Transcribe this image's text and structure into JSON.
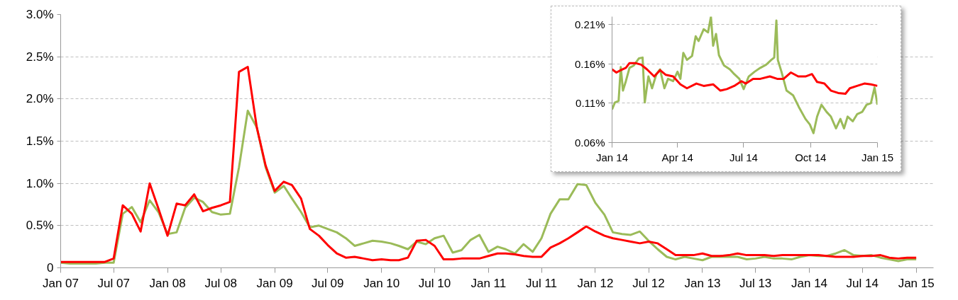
{
  "chart_data": [
    {
      "type": "line",
      "x": [
        "2007-01",
        "2007-02",
        "2007-03",
        "2007-04",
        "2007-05",
        "2007-06",
        "2007-07",
        "2007-08",
        "2007-09",
        "2007-10",
        "2007-11",
        "2007-12",
        "2008-01",
        "2008-02",
        "2008-03",
        "2008-04",
        "2008-05",
        "2008-06",
        "2008-07",
        "2008-08",
        "2008-09",
        "2008-10",
        "2008-11",
        "2008-12",
        "2009-01",
        "2009-02",
        "2009-03",
        "2009-04",
        "2009-05",
        "2009-06",
        "2009-07",
        "2009-08",
        "2009-09",
        "2009-10",
        "2009-11",
        "2009-12",
        "2010-01",
        "2010-02",
        "2010-03",
        "2010-04",
        "2010-05",
        "2010-06",
        "2010-07",
        "2010-08",
        "2010-09",
        "2010-10",
        "2010-11",
        "2010-12",
        "2011-01",
        "2011-02",
        "2011-03",
        "2011-04",
        "2011-05",
        "2011-06",
        "2011-07",
        "2011-08",
        "2011-09",
        "2011-10",
        "2011-11",
        "2011-12",
        "2012-01",
        "2012-02",
        "2012-03",
        "2012-04",
        "2012-05",
        "2012-06",
        "2012-07",
        "2012-08",
        "2012-09",
        "2012-10",
        "2012-11",
        "2012-12",
        "2013-01",
        "2013-02",
        "2013-03",
        "2013-04",
        "2013-05",
        "2013-06",
        "2013-07",
        "2013-08",
        "2013-09",
        "2013-10",
        "2013-11",
        "2013-12",
        "2014-01",
        "2014-02",
        "2014-03",
        "2014-04",
        "2014-05",
        "2014-06",
        "2014-07",
        "2014-08",
        "2014-09",
        "2014-10",
        "2014-11",
        "2014-12",
        "2015-01"
      ],
      "series": [
        {
          "color": "#9bbb59",
          "values": [
            0.06,
            0.05,
            0.05,
            0.05,
            0.05,
            0.06,
            0.06,
            0.64,
            0.72,
            0.54,
            0.8,
            0.66,
            0.4,
            0.42,
            0.71,
            0.83,
            0.78,
            0.66,
            0.63,
            0.64,
            1.19,
            1.86,
            1.66,
            1.19,
            0.89,
            0.97,
            0.82,
            0.66,
            0.48,
            0.5,
            0.46,
            0.42,
            0.35,
            0.26,
            0.29,
            0.32,
            0.31,
            0.29,
            0.26,
            0.22,
            0.31,
            0.28,
            0.35,
            0.38,
            0.18,
            0.21,
            0.33,
            0.39,
            0.19,
            0.25,
            0.22,
            0.17,
            0.28,
            0.19,
            0.35,
            0.64,
            0.81,
            0.81,
            0.99,
            0.98,
            0.77,
            0.63,
            0.42,
            0.4,
            0.39,
            0.43,
            0.32,
            0.22,
            0.13,
            0.1,
            0.13,
            0.11,
            0.09,
            0.13,
            0.13,
            0.13,
            0.13,
            0.1,
            0.11,
            0.13,
            0.11,
            0.11,
            0.1,
            0.13,
            0.15,
            0.14,
            0.14,
            0.17,
            0.21,
            0.15,
            0.14,
            0.15,
            0.12,
            0.1,
            0.08,
            0.1,
            0.1
          ]
        },
        {
          "color": "#ff0000",
          "values": [
            0.07,
            0.07,
            0.07,
            0.07,
            0.07,
            0.07,
            0.11,
            0.74,
            0.64,
            0.43,
            1.0,
            0.7,
            0.38,
            0.76,
            0.74,
            0.87,
            0.67,
            0.71,
            0.74,
            0.78,
            2.32,
            2.38,
            1.66,
            1.21,
            0.91,
            1.02,
            0.98,
            0.82,
            0.46,
            0.38,
            0.27,
            0.17,
            0.12,
            0.13,
            0.11,
            0.09,
            0.1,
            0.09,
            0.09,
            0.12,
            0.32,
            0.33,
            0.26,
            0.1,
            0.1,
            0.11,
            0.11,
            0.11,
            0.14,
            0.17,
            0.17,
            0.16,
            0.14,
            0.13,
            0.13,
            0.24,
            0.29,
            0.35,
            0.42,
            0.49,
            0.43,
            0.38,
            0.35,
            0.33,
            0.31,
            0.29,
            0.31,
            0.29,
            0.22,
            0.15,
            0.15,
            0.15,
            0.17,
            0.14,
            0.14,
            0.15,
            0.17,
            0.15,
            0.15,
            0.15,
            0.14,
            0.15,
            0.15,
            0.15,
            0.15,
            0.15,
            0.14,
            0.13,
            0.13,
            0.13,
            0.14,
            0.14,
            0.15,
            0.12,
            0.11,
            0.12,
            0.12
          ]
        }
      ],
      "xlim": [
        "2007-01",
        "2015-03"
      ],
      "xticks": [
        {
          "value": "2007-01",
          "label": "Jan 07"
        },
        {
          "value": "2007-07",
          "label": "Jul 07"
        },
        {
          "value": "2008-01",
          "label": "Jan 08"
        },
        {
          "value": "2008-07",
          "label": "Jul 08"
        },
        {
          "value": "2009-01",
          "label": "Jan 09"
        },
        {
          "value": "2009-07",
          "label": "Jul 09"
        },
        {
          "value": "2010-01",
          "label": "Jan 10"
        },
        {
          "value": "2010-07",
          "label": "Jul 10"
        },
        {
          "value": "2011-01",
          "label": "Jan 11"
        },
        {
          "value": "2011-07",
          "label": "Jul 11"
        },
        {
          "value": "2012-01",
          "label": "Jan 12"
        },
        {
          "value": "2012-07",
          "label": "Jul 12"
        },
        {
          "value": "2013-01",
          "label": "Jan 13"
        },
        {
          "value": "2013-07",
          "label": "Jul 13"
        },
        {
          "value": "2014-01",
          "label": "Jan 14"
        },
        {
          "value": "2014-07",
          "label": "Jul 14"
        },
        {
          "value": "2015-01",
          "label": "Jan 15"
        }
      ],
      "ylim": [
        0,
        3.0
      ],
      "yticks": [
        0,
        {
          "value": 0.5,
          "label": "0.5%"
        },
        {
          "value": 1.0,
          "label": "1.0%"
        },
        {
          "value": 1.5,
          "label": "1.5%"
        },
        {
          "value": 2.0,
          "label": "2.0%"
        },
        {
          "value": 2.5,
          "label": "2.5%"
        },
        {
          "value": 3.0,
          "label": "3.0%"
        }
      ],
      "grid": "y"
    },
    {
      "type": "line",
      "series": [
        {
          "color": "#9bbb59",
          "x": [
            "2014-01-01",
            "2014-01-05",
            "2014-01-10",
            "2014-01-13",
            "2014-01-16",
            "2014-01-20",
            "2014-01-25",
            "2014-01-31",
            "2014-02-07",
            "2014-02-12",
            "2014-02-15",
            "2014-02-20",
            "2014-02-25",
            "2014-03-03",
            "2014-03-08",
            "2014-03-14",
            "2014-03-19",
            "2014-03-26",
            "2014-04-01",
            "2014-04-05",
            "2014-04-09",
            "2014-04-14",
            "2014-04-21",
            "2014-04-26",
            "2014-04-30",
            "2014-05-07",
            "2014-05-13",
            "2014-05-17",
            "2014-05-20",
            "2014-05-24",
            "2014-05-28",
            "2014-06-04",
            "2014-06-12",
            "2014-06-18",
            "2014-06-25",
            "2014-07-01",
            "2014-07-08",
            "2014-07-16",
            "2014-07-24",
            "2014-08-01",
            "2014-08-08",
            "2014-08-12",
            "2014-08-15",
            "2014-08-17",
            "2014-08-22",
            "2014-08-29",
            "2014-09-07",
            "2014-09-15",
            "2014-09-24",
            "2014-09-30",
            "2014-10-05",
            "2014-10-10",
            "2014-10-16",
            "2014-10-23",
            "2014-10-29",
            "2014-11-05",
            "2014-11-11",
            "2014-11-16",
            "2014-11-21",
            "2014-11-28",
            "2014-12-04",
            "2014-12-11",
            "2014-12-17",
            "2014-12-23",
            "2014-12-28",
            "2015-01-01"
          ],
          "values": [
            0.102,
            0.111,
            0.113,
            0.156,
            0.126,
            0.138,
            0.155,
            0.158,
            0.167,
            0.168,
            0.111,
            0.144,
            0.129,
            0.147,
            0.153,
            0.129,
            0.141,
            0.138,
            0.15,
            0.141,
            0.174,
            0.165,
            0.17,
            0.195,
            0.189,
            0.204,
            0.2,
            0.22,
            0.183,
            0.198,
            0.171,
            0.158,
            0.153,
            0.147,
            0.141,
            0.128,
            0.144,
            0.15,
            0.155,
            0.159,
            0.165,
            0.168,
            0.215,
            0.165,
            0.15,
            0.126,
            0.12,
            0.105,
            0.09,
            0.083,
            0.072,
            0.093,
            0.108,
            0.099,
            0.093,
            0.078,
            0.09,
            0.078,
            0.093,
            0.087,
            0.096,
            0.099,
            0.108,
            0.11,
            0.13,
            0.108
          ]
        },
        {
          "color": "#ff0000",
          "x": [
            "2014-01-01",
            "2014-01-07",
            "2014-01-13",
            "2014-01-20",
            "2014-01-25",
            "2014-02-02",
            "2014-02-10",
            "2014-02-18",
            "2014-02-28",
            "2014-03-08",
            "2014-03-16",
            "2014-03-26",
            "2014-04-05",
            "2014-04-14",
            "2014-04-27",
            "2014-05-07",
            "2014-05-20",
            "2014-05-30",
            "2014-06-08",
            "2014-06-18",
            "2014-06-28",
            "2014-07-04",
            "2014-07-14",
            "2014-07-24",
            "2014-08-06",
            "2014-08-16",
            "2014-08-25",
            "2014-09-04",
            "2014-09-14",
            "2014-09-24",
            "2014-10-03",
            "2014-10-10",
            "2014-10-20",
            "2014-10-29",
            "2014-11-08",
            "2014-11-18",
            "2014-11-24",
            "2014-12-04",
            "2014-12-14",
            "2014-12-23",
            "2015-01-01"
          ],
          "values": [
            0.153,
            0.149,
            0.152,
            0.155,
            0.161,
            0.161,
            0.159,
            0.153,
            0.144,
            0.152,
            0.146,
            0.144,
            0.134,
            0.129,
            0.135,
            0.132,
            0.134,
            0.126,
            0.128,
            0.132,
            0.138,
            0.135,
            0.141,
            0.141,
            0.144,
            0.141,
            0.141,
            0.149,
            0.144,
            0.144,
            0.147,
            0.137,
            0.135,
            0.126,
            0.123,
            0.122,
            0.129,
            0.132,
            0.135,
            0.134,
            0.132
          ]
        }
      ],
      "xlim": [
        "2014-01-01",
        "2015-01-01"
      ],
      "xticks": [
        {
          "value": "2014-01-01",
          "label": "Jan 14"
        },
        {
          "value": "2014-04-01",
          "label": "Apr 14"
        },
        {
          "value": "2014-07-01",
          "label": "Jul 14"
        },
        {
          "value": "2014-10-01",
          "label": "Oct 14"
        },
        {
          "value": "2015-01-01",
          "label": "Jan 15"
        }
      ],
      "ylim": [
        0.06,
        0.22
      ],
      "yticks": [
        {
          "value": 0.06,
          "label": "0.06%"
        },
        {
          "value": 0.11,
          "label": "0.11%"
        },
        {
          "value": 0.16,
          "label": "0.16%"
        },
        {
          "value": 0.21,
          "label": "0.21%"
        }
      ],
      "grid": "y"
    }
  ]
}
